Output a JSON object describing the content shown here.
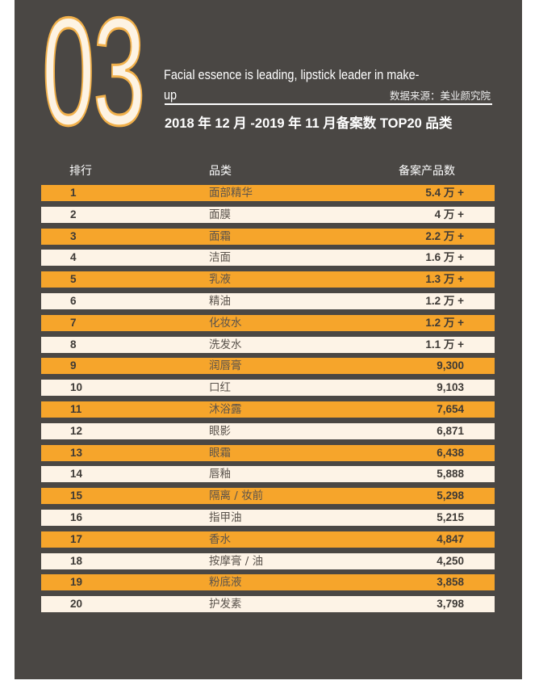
{
  "header": {
    "section_number": "03",
    "subtitle": "Facial essence is leading, lipstick leader in make-up",
    "source": "数据来源：美业颜究院",
    "title": "2018 年 12 月 -2019 年 11 月备案数 TOP20 品类"
  },
  "table": {
    "columns": [
      "排行",
      "品类",
      "备案产品数"
    ],
    "rows": [
      {
        "rank": "1",
        "category": "面部精华",
        "count": "5.4 万 +"
      },
      {
        "rank": "2",
        "category": "面膜",
        "count": "4 万 +"
      },
      {
        "rank": "3",
        "category": "面霜",
        "count": "2.2 万 +"
      },
      {
        "rank": "4",
        "category": "洁面",
        "count": "1.6 万 +"
      },
      {
        "rank": "5",
        "category": "乳液",
        "count": "1.3 万 +"
      },
      {
        "rank": "6",
        "category": "精油",
        "count": "1.2 万 +"
      },
      {
        "rank": "7",
        "category": "化妆水",
        "count": "1.2 万 +"
      },
      {
        "rank": "8",
        "category": "洗发水",
        "count": "1.1 万 +"
      },
      {
        "rank": "9",
        "category": "润唇膏",
        "count": "9,300"
      },
      {
        "rank": "10",
        "category": "口红",
        "count": "9,103"
      },
      {
        "rank": "11",
        "category": "沐浴露",
        "count": "7,654"
      },
      {
        "rank": "12",
        "category": "眼影",
        "count": "6,871"
      },
      {
        "rank": "13",
        "category": "眼霜",
        "count": "6,438"
      },
      {
        "rank": "14",
        "category": "唇釉",
        "count": "5,888"
      },
      {
        "rank": "15",
        "category": "隔离 / 妆前",
        "count": "5,298"
      },
      {
        "rank": "16",
        "category": "指甲油",
        "count": "5,215"
      },
      {
        "rank": "17",
        "category": "香水",
        "count": "4,847"
      },
      {
        "rank": "18",
        "category": "按摩膏 / 油",
        "count": "4,250"
      },
      {
        "rank": "19",
        "category": "粉底液",
        "count": "3,858"
      },
      {
        "rank": "20",
        "category": "护发素",
        "count": "3,798"
      }
    ]
  },
  "colors": {
    "background": "#4a4744",
    "orange_row": "#f6a52b",
    "cream_row": "#fdf3e6"
  }
}
